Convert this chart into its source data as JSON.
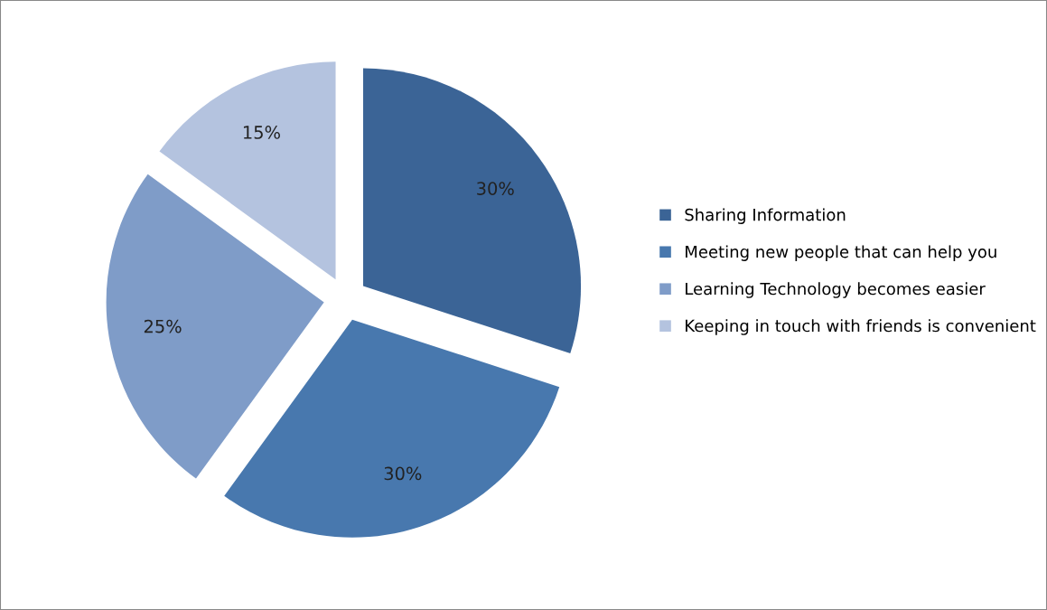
{
  "chart_data": {
    "type": "pie",
    "categories": [
      "Sharing Information",
      "Meeting new people that can help you",
      "Learning Technology becomes easier",
      "Keeping in touch with friends is convenient"
    ],
    "values": [
      30,
      30,
      25,
      15
    ],
    "value_labels": [
      "30%",
      "30%",
      "25%",
      "15%"
    ],
    "colors": [
      "#3b6496",
      "#4878ae",
      "#7f9cc8",
      "#b4c3df"
    ],
    "legend": "right"
  }
}
